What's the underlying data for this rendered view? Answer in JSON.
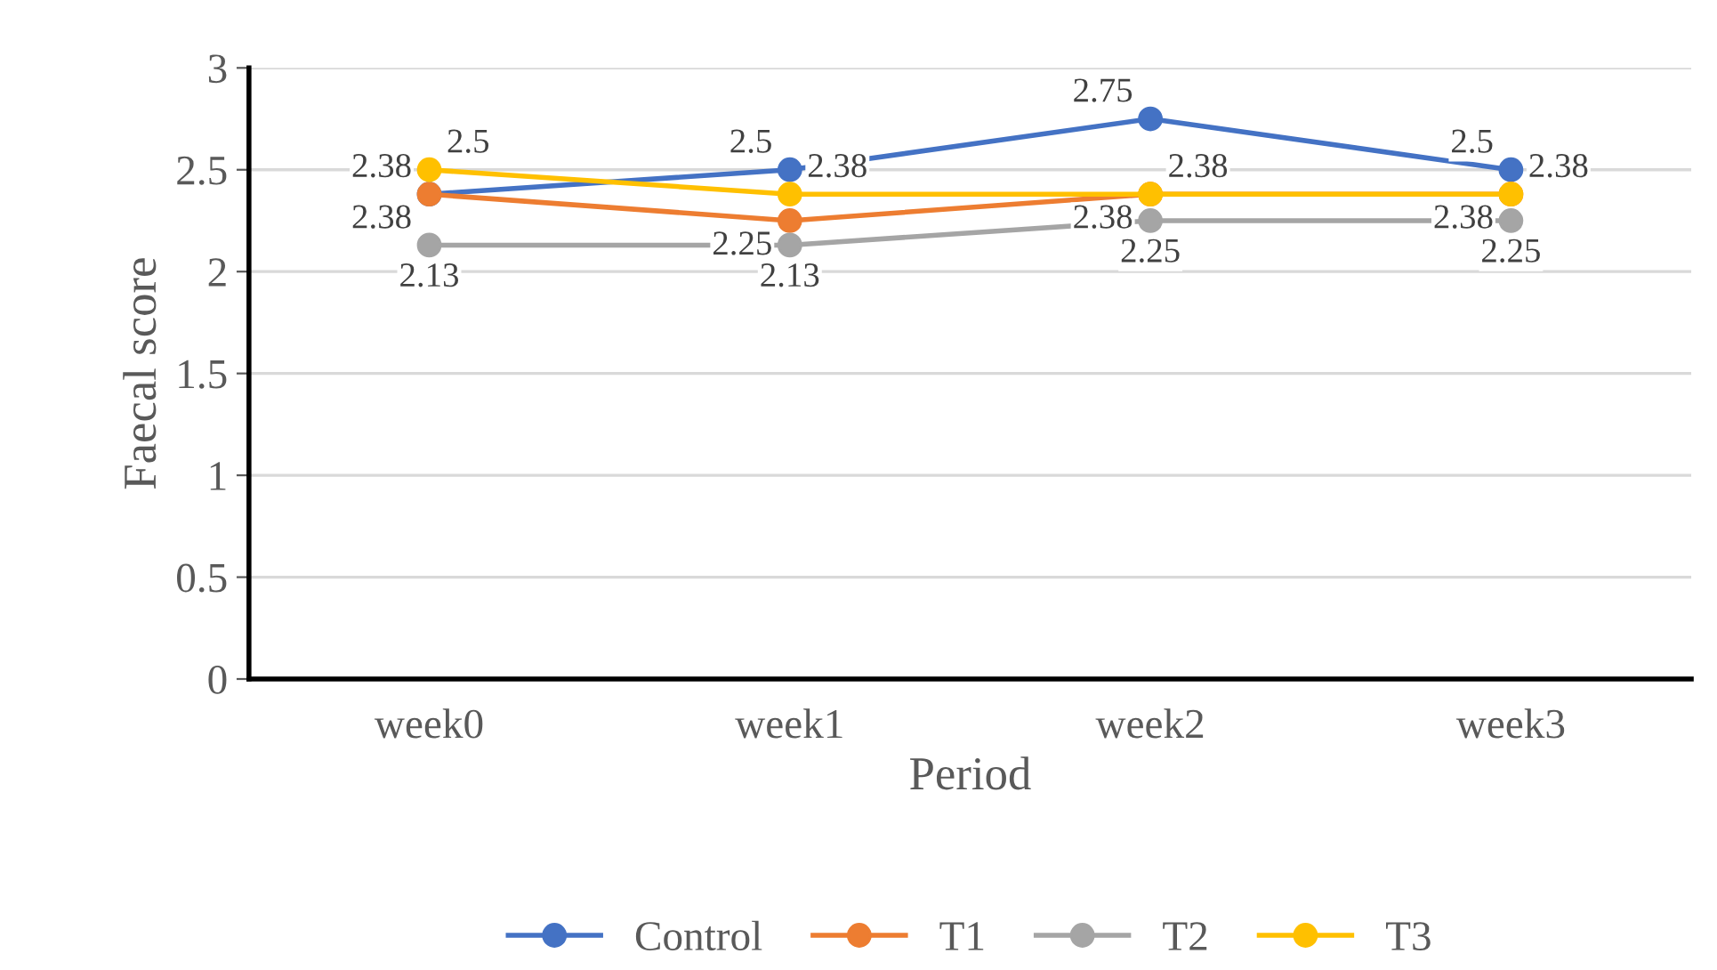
{
  "chart_data": {
    "type": "line",
    "xlabel": "Period",
    "ylabel": "Faecal score",
    "categories": [
      "week0",
      "week1",
      "week2",
      "week3"
    ],
    "series": [
      {
        "name": "Control",
        "color": "#4472c4",
        "values": [
          2.38,
          2.5,
          2.75,
          2.5
        ]
      },
      {
        "name": "T1",
        "color": "#ed7d31",
        "values": [
          2.38,
          2.25,
          2.38,
          2.38
        ]
      },
      {
        "name": "T2",
        "color": "#a5a5a5",
        "values": [
          2.13,
          2.13,
          2.25,
          2.25
        ]
      },
      {
        "name": "T3",
        "color": "#ffc000",
        "values": [
          2.5,
          2.38,
          2.38,
          2.38
        ]
      }
    ],
    "ylim": [
      0,
      3
    ],
    "yticks": [
      0,
      0.5,
      1,
      1.5,
      2,
      2.5,
      3
    ],
    "grid": "y",
    "legend": "bottom",
    "marker": "circle",
    "line_style": "solid",
    "data_labels": true
  }
}
